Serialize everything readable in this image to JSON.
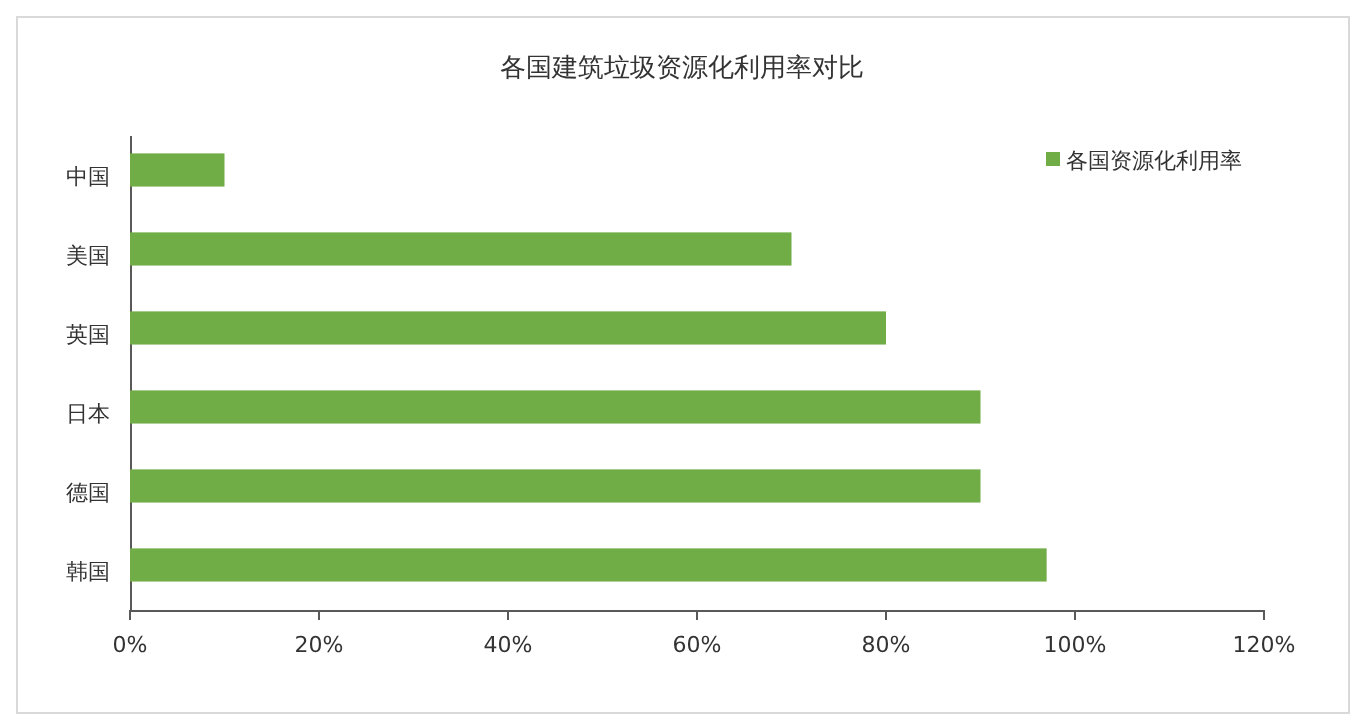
{
  "chart_data": {
    "type": "bar",
    "orientation": "horizontal",
    "title": "各国建筑垃圾资源化利用率对比",
    "categories": [
      "中国",
      "美国",
      "英国",
      "日本",
      "德国",
      "韩国"
    ],
    "series": [
      {
        "name": "各国资源化利用率",
        "color": "#70ad47",
        "values": [
          10,
          70,
          80,
          90,
          90,
          97
        ]
      }
    ],
    "xlim": [
      0,
      120
    ],
    "xticks": [
      {
        "value": 0,
        "label": "0%"
      },
      {
        "value": 20,
        "label": "20%"
      },
      {
        "value": 40,
        "label": "40%"
      },
      {
        "value": 60,
        "label": "60%"
      },
      {
        "value": 80,
        "label": "80%"
      },
      {
        "value": 100,
        "label": "100%"
      },
      {
        "value": 120,
        "label": "120%"
      }
    ],
    "grid": false,
    "legend": "top right"
  }
}
